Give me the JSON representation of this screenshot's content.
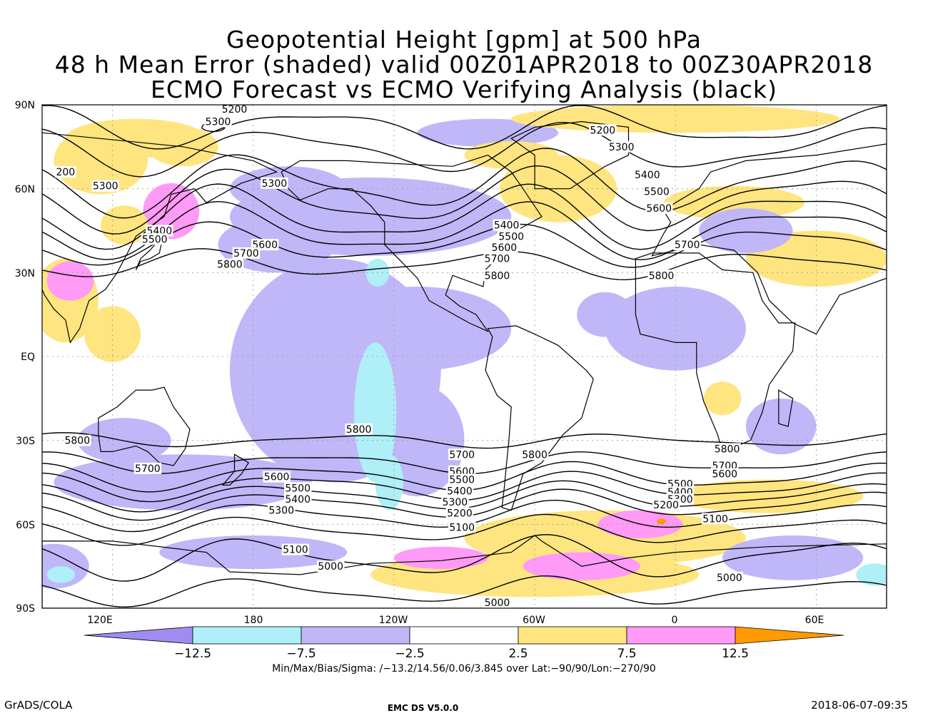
{
  "titles": [
    "Geopotential Height [gpm] at 500 hPa",
    "48 h Mean Error (shaded) valid 00Z01APR2018 to 00Z30APR2018",
    "ECMO Forecast vs ECMO Verifying Analysis (black)"
  ],
  "lat_labels": [
    "90N",
    "60N",
    "30N",
    "EQ",
    "30S",
    "60S",
    "90S"
  ],
  "lon_labels": [
    "120E",
    "180",
    "120W",
    "60W",
    "0",
    "60E"
  ],
  "colorbar": {
    "colors": [
      "#a08cf0",
      "#afeff7",
      "#c0b7f8",
      "#ffffff",
      "#ffe580",
      "#ff9af6",
      "#ff9a00"
    ],
    "labels": [
      "−12.5",
      "−7.5",
      "−2.5",
      "2.5",
      "7.5",
      "12.5"
    ]
  },
  "stats": "Min/Max/Bias/Sigma: /−13.2/14.56/0.06/3.845 over Lat:−90/90/Lon:−270/90",
  "footer": {
    "left": "GrADS/COLA",
    "center": "EMC DS V5.0.0",
    "right": "2018-06-07-09:35"
  },
  "contour_labels": [
    {
      "text": "5200",
      "lat": 88.5,
      "lon": 172
    },
    {
      "text": "5300",
      "lat": 84,
      "lon": 165
    },
    {
      "text": "200",
      "lat": 66,
      "lon": 100
    },
    {
      "text": "5300",
      "lat": 61,
      "lon": 117
    },
    {
      "text": "5300",
      "lat": 62,
      "lon": 189
    },
    {
      "text": "5400",
      "lat": 45,
      "lon": 140
    },
    {
      "text": "5500",
      "lat": 42,
      "lon": 138
    },
    {
      "text": "5600",
      "lat": 40,
      "lon": 185
    },
    {
      "text": "5700",
      "lat": 37,
      "lon": 177
    },
    {
      "text": "5800",
      "lat": 33,
      "lon": 170
    },
    {
      "text": "5200",
      "lat": 81,
      "lon": 329
    },
    {
      "text": "5300",
      "lat": 75,
      "lon": 337
    },
    {
      "text": "5400",
      "lat": 65,
      "lon": 348
    },
    {
      "text": "5500",
      "lat": 59,
      "lon": 352
    },
    {
      "text": "5600",
      "lat": 53,
      "lon": 353
    },
    {
      "text": "5700",
      "lat": 40,
      "lon": 365
    },
    {
      "text": "5800",
      "lat": 29,
      "lon": 354
    },
    {
      "text": "5400",
      "lat": 47,
      "lon": 288
    },
    {
      "text": "5500",
      "lat": 43,
      "lon": 290
    },
    {
      "text": "5600",
      "lat": 39,
      "lon": 287
    },
    {
      "text": "5700",
      "lat": 35,
      "lon": 284
    },
    {
      "text": "5800",
      "lat": 29,
      "lon": 284
    },
    {
      "text": "5800",
      "lat": -30,
      "lon": 105
    },
    {
      "text": "5800",
      "lat": -26,
      "lon": 225
    },
    {
      "text": "5700",
      "lat": -40,
      "lon": 135
    },
    {
      "text": "5600",
      "lat": -43,
      "lon": 190
    },
    {
      "text": "5500",
      "lat": -47,
      "lon": 199
    },
    {
      "text": "5400",
      "lat": -51,
      "lon": 199
    },
    {
      "text": "5300",
      "lat": -55,
      "lon": 192
    },
    {
      "text": "5100",
      "lat": -69,
      "lon": 198
    },
    {
      "text": "5000",
      "lat": -75,
      "lon": 213
    },
    {
      "text": "5800",
      "lat": -35,
      "lon": 300
    },
    {
      "text": "5700",
      "lat": -35,
      "lon": 269
    },
    {
      "text": "5600",
      "lat": -41,
      "lon": 269
    },
    {
      "text": "5500",
      "lat": -44,
      "lon": 269
    },
    {
      "text": "5400",
      "lat": -48,
      "lon": 268
    },
    {
      "text": "5300",
      "lat": -52,
      "lon": 266
    },
    {
      "text": "5200",
      "lat": -56,
      "lon": 268
    },
    {
      "text": "5100",
      "lat": -61,
      "lon": 269
    },
    {
      "text": "5000",
      "lat": -88,
      "lon": 284
    },
    {
      "text": "5800",
      "lat": -33,
      "lon": 382
    },
    {
      "text": "5700",
      "lat": -39,
      "lon": 381
    },
    {
      "text": "5600",
      "lat": -42,
      "lon": 381
    },
    {
      "text": "5500",
      "lat": -45.5,
      "lon": 362
    },
    {
      "text": "5400",
      "lat": -48.5,
      "lon": 362
    },
    {
      "text": "5300",
      "lat": -51,
      "lon": 362
    },
    {
      "text": "5200",
      "lat": -53,
      "lon": 356
    },
    {
      "text": "5100",
      "lat": -58,
      "lon": 377
    },
    {
      "text": "5000",
      "lat": -79,
      "lon": 383
    }
  ]
}
